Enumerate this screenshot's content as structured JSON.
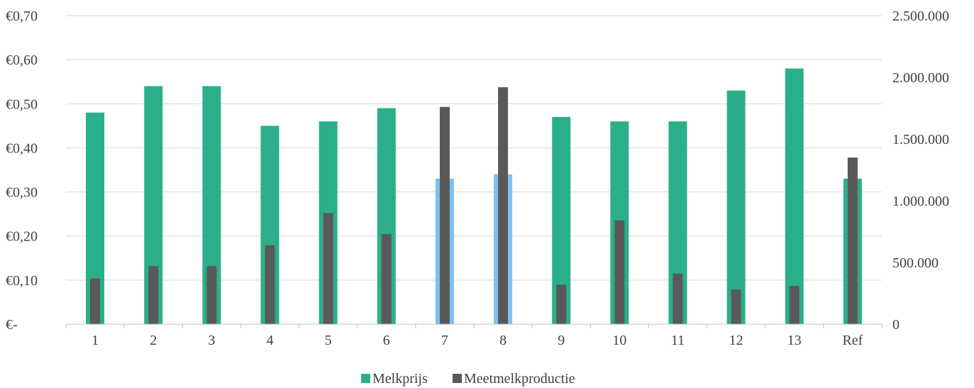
{
  "chart_data": {
    "type": "bar",
    "categories": [
      "1",
      "2",
      "3",
      "4",
      "5",
      "6",
      "7",
      "8",
      "9",
      "10",
      "11",
      "12",
      "13",
      "Ref"
    ],
    "series": [
      {
        "name": "Melkprijs",
        "axis": "left",
        "color": "#2aaf8a",
        "highlight_color": "#7cc0ee",
        "highlight_categories": [
          "7",
          "8"
        ],
        "values": [
          0.48,
          0.54,
          0.54,
          0.45,
          0.46,
          0.49,
          0.33,
          0.34,
          0.47,
          0.46,
          0.46,
          0.53,
          0.58,
          0.33
        ]
      },
      {
        "name": "Meetmelkproductie",
        "axis": "right",
        "color": "#595959",
        "values": [
          370000,
          470000,
          470000,
          640000,
          900000,
          730000,
          1760000,
          1920000,
          320000,
          840000,
          410000,
          280000,
          310000,
          1350000
        ]
      }
    ],
    "y_left": {
      "range": [
        0,
        0.7
      ],
      "ticks": [
        0,
        0.1,
        0.2,
        0.3,
        0.4,
        0.5,
        0.6,
        0.7
      ],
      "tick_labels": [
        "€-",
        "€0,10",
        "€0,20",
        "€0,30",
        "€0,40",
        "€0,50",
        "€0,60",
        "€0,70"
      ]
    },
    "y_right": {
      "range": [
        0,
        2500000
      ],
      "ticks": [
        0,
        500000,
        1000000,
        1500000,
        2000000,
        2500000
      ],
      "tick_labels": [
        "0",
        "500.000",
        "1.000.000",
        "1.500.000",
        "2.000.000",
        "2.500.000"
      ]
    },
    "grid": true,
    "legend_position": "bottom",
    "colors": {
      "grid": "#d9d9d9",
      "axis": "#bfbfbf",
      "text": "#404040"
    }
  }
}
